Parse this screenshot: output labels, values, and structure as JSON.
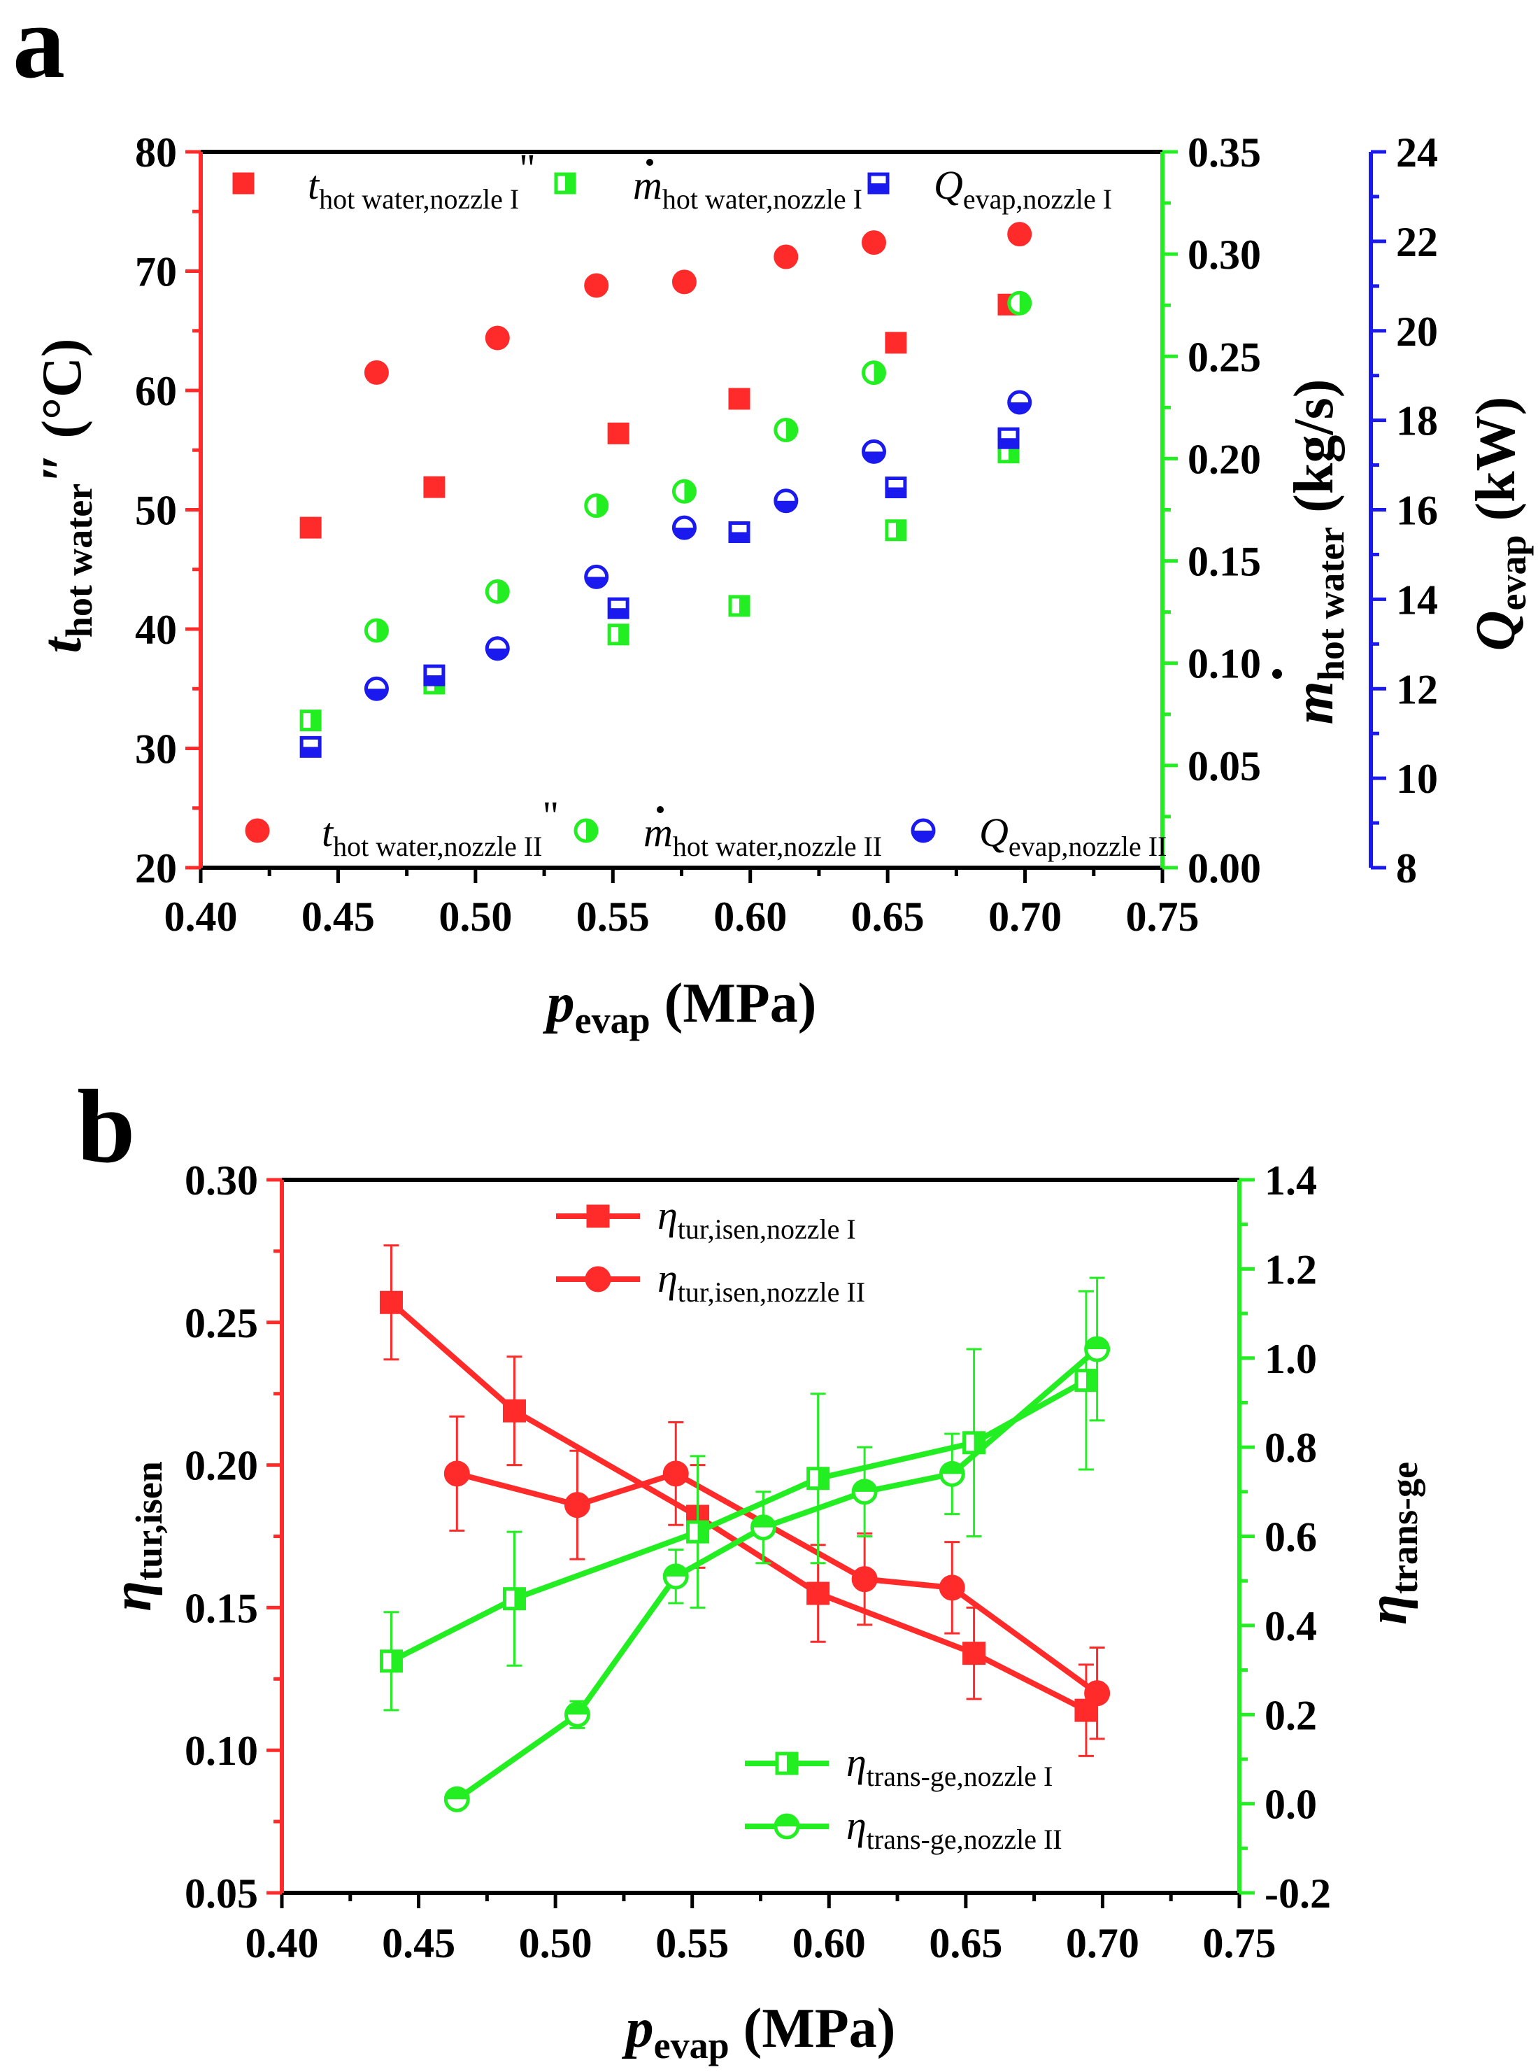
{
  "panels": {
    "a": {
      "letter": "a"
    },
    "b": {
      "letter": "b"
    }
  },
  "chart_data": [
    {
      "type": "scatter",
      "panel": "a",
      "x_axis": {
        "label_main": "p",
        "label_sub": "evap",
        "label_unit": "(MPa)",
        "lim": [
          0.4,
          0.75
        ],
        "ticks": [
          "0.40",
          "0.45",
          "0.50",
          "0.55",
          "0.60",
          "0.65",
          "0.70",
          "0.75"
        ]
      },
      "y_axes": [
        {
          "side": "left",
          "color": "#ff2a2a",
          "label_main": "t",
          "label_sub": "hot water",
          "label_mark": "″",
          "label_unit": "(°C)",
          "lim": [
            20,
            80
          ],
          "ticks": [
            "20",
            "30",
            "40",
            "50",
            "60",
            "70",
            "80"
          ]
        },
        {
          "side": "right-inner",
          "color": "#22ee22",
          "label_main": "m",
          "label_sub": "hot water",
          "label_unit": "(kg/s)",
          "lim": [
            0.0,
            0.35
          ],
          "ticks": [
            "0.00",
            "0.05",
            "0.10",
            "0.15",
            "0.20",
            "0.25",
            "0.30",
            "0.35"
          ]
        },
        {
          "side": "right-outer",
          "color": "#1a1aee",
          "label_main": "Q",
          "label_sub": "evap",
          "label_unit": "(kW)",
          "lim": [
            8,
            24
          ],
          "ticks": [
            "8",
            "10",
            "12",
            "14",
            "16",
            "18",
            "20",
            "22",
            "24"
          ]
        }
      ],
      "series": [
        {
          "name": "t hot water, nozzle I",
          "legend_main": "t",
          "legend_sub": "hot water,nozzle I",
          "legend_mark": "\"",
          "axis": 0,
          "marker": "square",
          "fill": "full",
          "color": "#ff2a2a",
          "x": [
            0.44,
            0.485,
            0.552,
            0.596,
            0.653,
            0.694
          ],
          "y": [
            48.5,
            51.9,
            56.4,
            59.3,
            64.0,
            67.2
          ]
        },
        {
          "name": "t hot water, nozzle II",
          "legend_main": "t",
          "legend_sub": "hot water,nozzle II",
          "legend_mark": "\"",
          "axis": 0,
          "marker": "circle",
          "fill": "full",
          "color": "#ff2a2a",
          "x": [
            0.464,
            0.508,
            0.544,
            0.576,
            0.613,
            0.645,
            0.698
          ],
          "y": [
            61.5,
            64.4,
            68.8,
            69.1,
            71.2,
            72.4,
            73.1
          ]
        },
        {
          "name": "m hot water, nozzle I",
          "legend_main": "m",
          "legend_sub": "hot water,nozzle I",
          "legend_mark": "",
          "axis": 1,
          "marker": "square",
          "fill": "right",
          "color": "#22ee22",
          "x": [
            0.44,
            0.485,
            0.552,
            0.596,
            0.653,
            0.694
          ],
          "y": [
            0.072,
            0.09,
            0.114,
            0.128,
            0.165,
            0.203
          ]
        },
        {
          "name": "m hot water, nozzle II",
          "legend_main": "m",
          "legend_sub": "hot water,nozzle II",
          "legend_mark": "",
          "axis": 1,
          "marker": "circle",
          "fill": "right",
          "color": "#22ee22",
          "x": [
            0.464,
            0.508,
            0.544,
            0.576,
            0.613,
            0.645,
            0.698
          ],
          "y": [
            0.116,
            0.135,
            0.177,
            0.184,
            0.214,
            0.242,
            0.276
          ]
        },
        {
          "name": "Q evap, nozzle I",
          "legend_main": "Q",
          "legend_sub": "evap,nozzle I",
          "legend_mark": "",
          "axis": 2,
          "marker": "square",
          "fill": "bottom",
          "color": "#1a1aee",
          "x": [
            0.44,
            0.485,
            0.552,
            0.596,
            0.653,
            0.694
          ],
          "y": [
            10.7,
            12.3,
            13.8,
            15.5,
            16.5,
            17.6
          ]
        },
        {
          "name": "Q evap, nozzle II",
          "legend_main": "Q",
          "legend_sub": "evap,nozzle II",
          "legend_mark": "",
          "axis": 2,
          "marker": "circle",
          "fill": "bottom",
          "color": "#1a1aee",
          "x": [
            0.464,
            0.508,
            0.544,
            0.576,
            0.613,
            0.645,
            0.698
          ],
          "y": [
            12.0,
            12.9,
            14.5,
            15.6,
            16.2,
            17.3,
            18.4
          ]
        }
      ]
    },
    {
      "type": "line",
      "panel": "b",
      "x_axis": {
        "label_main": "p",
        "label_sub": "evap",
        "label_unit": "(MPa)",
        "lim": [
          0.4,
          0.75
        ],
        "ticks": [
          "0.40",
          "0.45",
          "0.50",
          "0.55",
          "0.60",
          "0.65",
          "0.70",
          "0.75"
        ]
      },
      "y_axes": [
        {
          "side": "left",
          "color": "#ff2a2a",
          "label_main": "η",
          "label_sub": "tur,isen",
          "lim": [
            0.05,
            0.3
          ],
          "ticks": [
            "0.05",
            "0.10",
            "0.15",
            "0.20",
            "0.25",
            "0.30"
          ]
        },
        {
          "side": "right",
          "color": "#22ee22",
          "label_main": "η",
          "label_sub": "trans-ge",
          "lim": [
            -0.2,
            1.4
          ],
          "ticks": [
            "-0.2",
            "0.0",
            "0.2",
            "0.4",
            "0.6",
            "0.8",
            "1.0",
            "1.2",
            "1.4"
          ]
        }
      ],
      "series": [
        {
          "name": "η tur,isen, nozzle I",
          "legend_main": "η",
          "legend_sub": "tur,isen,nozzle I",
          "axis": 0,
          "marker": "square",
          "fill": "full",
          "color": "#ff2a2a",
          "x": [
            0.44,
            0.485,
            0.552,
            0.596,
            0.653,
            0.694
          ],
          "y": [
            0.257,
            0.219,
            0.182,
            0.155,
            0.134,
            0.114
          ],
          "err": [
            0.02,
            0.019,
            0.018,
            0.017,
            0.016,
            0.016
          ]
        },
        {
          "name": "η tur,isen, nozzle II",
          "legend_main": "η",
          "legend_sub": "tur,isen,nozzle II",
          "axis": 0,
          "marker": "circle",
          "fill": "full",
          "color": "#ff2a2a",
          "x": [
            0.464,
            0.508,
            0.544,
            0.613,
            0.645,
            0.698
          ],
          "y": [
            0.197,
            0.186,
            0.197,
            0.16,
            0.157,
            0.12
          ],
          "err": [
            0.02,
            0.019,
            0.018,
            0.016,
            0.016,
            0.016
          ]
        },
        {
          "name": "η trans-ge, nozzle I",
          "legend_main": "η",
          "legend_sub": "trans-ge,nozzle I",
          "axis": 1,
          "marker": "square",
          "fill": "right",
          "color": "#22ee22",
          "x": [
            0.44,
            0.485,
            0.552,
            0.596,
            0.653,
            0.694
          ],
          "y": [
            0.32,
            0.46,
            0.61,
            0.73,
            0.81,
            0.95
          ],
          "err": [
            0.11,
            0.15,
            0.17,
            0.19,
            0.21,
            0.2
          ]
        },
        {
          "name": "η trans-ge, nozzle II",
          "legend_main": "η",
          "legend_sub": "trans-ge,nozzle II",
          "axis": 1,
          "marker": "circle",
          "fill": "top",
          "color": "#22ee22",
          "x": [
            0.464,
            0.508,
            0.544,
            0.576,
            0.613,
            0.645,
            0.698
          ],
          "y": [
            0.01,
            0.2,
            0.51,
            0.62,
            0.7,
            0.74,
            1.02
          ],
          "err": [
            0.0,
            0.03,
            0.06,
            0.08,
            0.1,
            0.09,
            0.16
          ]
        }
      ]
    }
  ]
}
